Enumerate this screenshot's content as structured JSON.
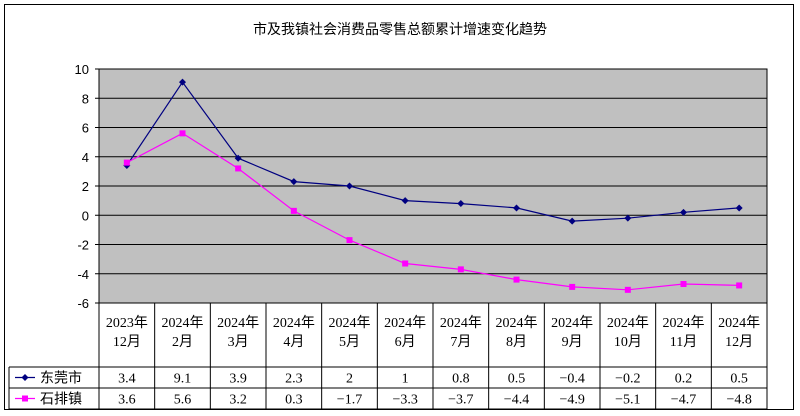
{
  "chart_data": {
    "type": "line",
    "title": "市及我镇社会消费品零售总额累计增速变化趋势",
    "categories": [
      "2023年\n12月",
      "2024年\n2月",
      "2024年\n3月",
      "2024年\n4月",
      "2024年\n5月",
      "2024年\n6月",
      "2024年\n7月",
      "2024年\n8月",
      "2024年\n9月",
      "2024年\n10月",
      "2024年\n11月",
      "2024年\n12月"
    ],
    "ylim": [
      -6,
      10
    ],
    "yticks": [
      10,
      8,
      6,
      4,
      2,
      0,
      -2,
      -4,
      -6
    ],
    "grid": true,
    "legend": "data-table",
    "plot_bg": "#C0C0C0",
    "series": [
      {
        "name": "东莞市",
        "color": "#000080",
        "marker": "diamond",
        "values": [
          3.4,
          9.1,
          3.9,
          2.3,
          2,
          1,
          0.8,
          0.5,
          -0.4,
          -0.2,
          0.2,
          0.5
        ],
        "labels": [
          "3.4",
          "9.1",
          "3.9",
          "2.3",
          "2",
          "1",
          "0.8",
          "0.5",
          "−0.4",
          "−0.2",
          "0.2",
          "0.5"
        ]
      },
      {
        "name": "石排镇",
        "color": "#FF00FF",
        "marker": "square",
        "values": [
          3.6,
          5.6,
          3.2,
          0.3,
          -1.7,
          -3.3,
          -3.7,
          -4.4,
          -4.9,
          -5.1,
          -4.7,
          -4.8
        ],
        "labels": [
          "3.6",
          "5.6",
          "3.2",
          "0.3",
          "−1.7",
          "−3.3",
          "−3.7",
          "−4.4",
          "−4.9",
          "−5.1",
          "−4.7",
          "−4.8"
        ]
      }
    ]
  }
}
